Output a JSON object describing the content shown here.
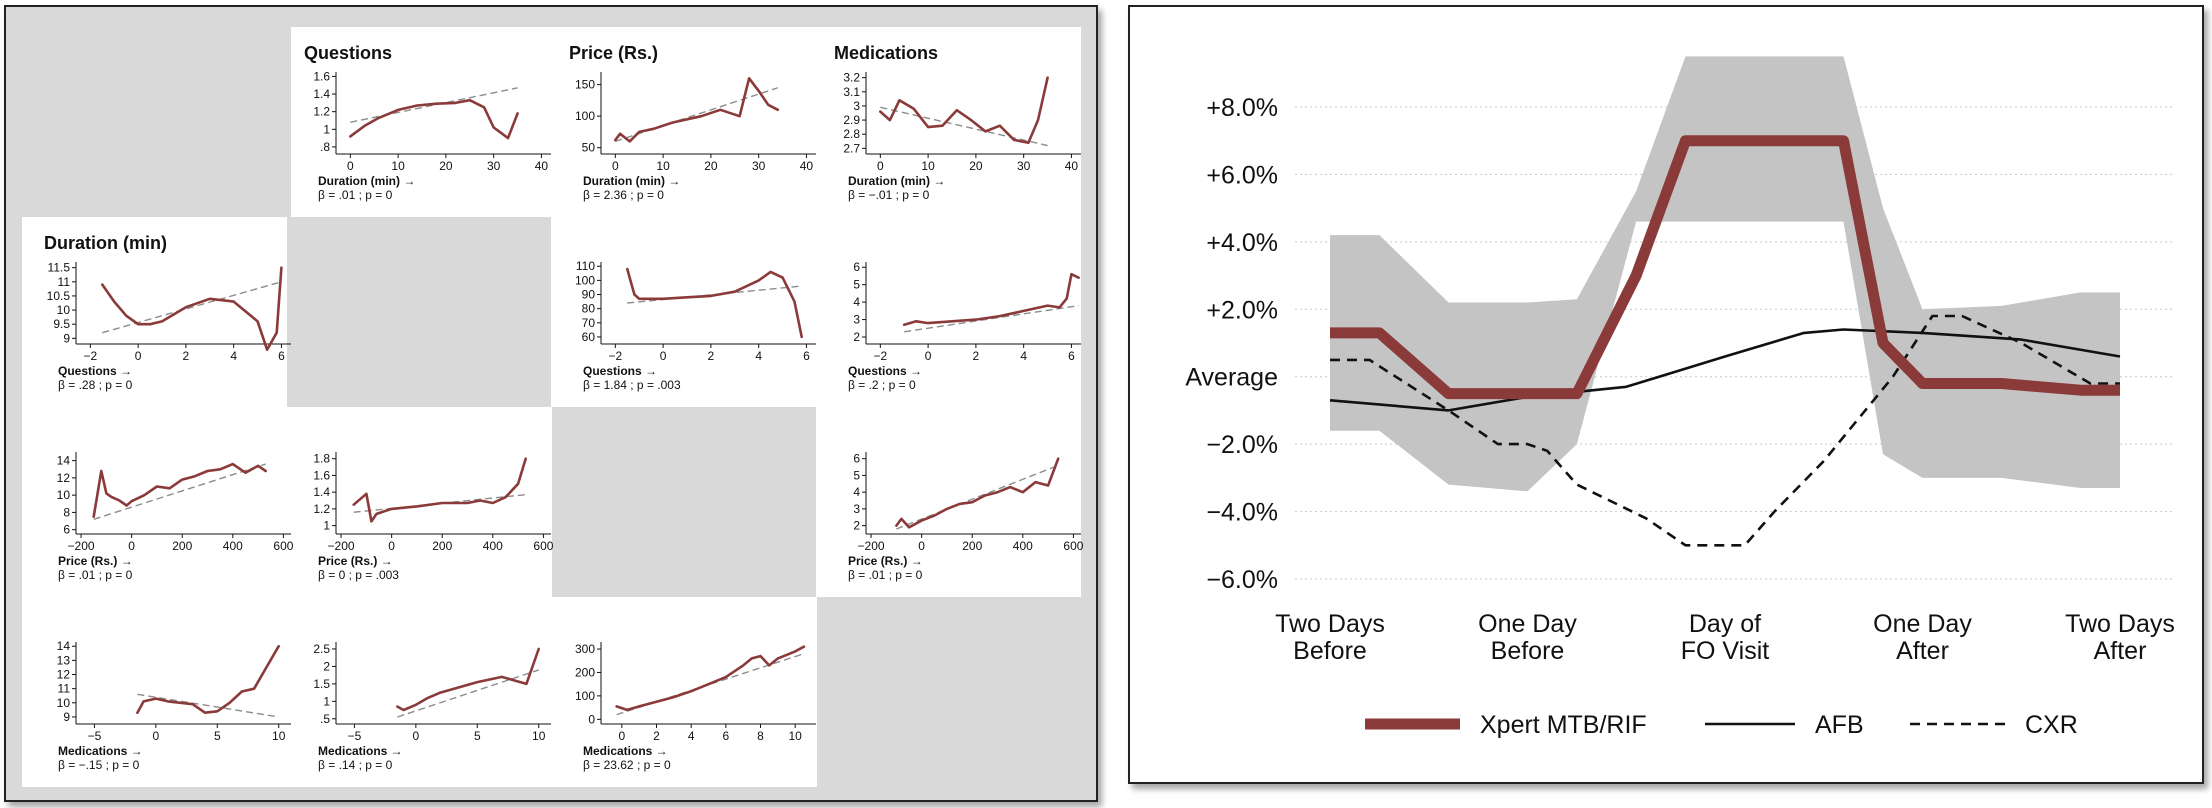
{
  "colors": {
    "series_red": "#8b3a3a",
    "fit_dash": "#8c8c8c",
    "ci_band": "#c4c4c4",
    "panel_gray": "#d9d9d9"
  },
  "chart_data": [
    {
      "type": "line",
      "layout": "scatterplot-matrix",
      "row_titles": [
        "Duration (min)",
        "Questions",
        "Price (Rs.)",
        "Medications"
      ],
      "col_titles": [
        "Questions",
        "Price (Rs.)",
        "Medications"
      ],
      "panels": [
        {
          "id": "q-dur",
          "xlabel": "Duration (min) →",
          "stat": "β = .01 ; p = 0",
          "xticks": [
            "0",
            "10",
            "20",
            "30",
            "40"
          ],
          "yticks": [
            "1.6",
            "1.4",
            "1.2",
            "1",
            ".8"
          ],
          "x": [
            0,
            3,
            6,
            10,
            14,
            18,
            22,
            25,
            28,
            30,
            33,
            35
          ],
          "y": [
            0.92,
            1.04,
            1.13,
            1.22,
            1.27,
            1.29,
            1.3,
            1.33,
            1.25,
            1.02,
            0.9,
            1.18
          ],
          "fit": [
            1.08,
            1.47
          ]
        },
        {
          "id": "p-dur",
          "xlabel": "Duration (min) →",
          "stat": "β = 2.36 ; p = 0",
          "xticks": [
            "0",
            "10",
            "20",
            "30",
            "40"
          ],
          "yticks": [
            "150",
            "100",
            "50"
          ],
          "x": [
            0,
            1,
            3,
            5,
            8,
            12,
            18,
            22,
            26,
            28,
            30,
            32,
            34
          ],
          "y": [
            62,
            72,
            60,
            75,
            80,
            90,
            100,
            110,
            100,
            160,
            140,
            118,
            110
          ],
          "fit": [
            60,
            145
          ]
        },
        {
          "id": "m-dur",
          "xlabel": "Duration (min) →",
          "stat": "β = −.01 ; p = 0",
          "xticks": [
            "0",
            "10",
            "20",
            "30",
            "40"
          ],
          "yticks": [
            "3.2",
            "3.1",
            "3",
            "2.9",
            "2.8",
            "2.7"
          ],
          "x": [
            0,
            2,
            4,
            7,
            10,
            13,
            16,
            19,
            22,
            25,
            28,
            31,
            33,
            35
          ],
          "y": [
            2.96,
            2.9,
            3.04,
            2.98,
            2.85,
            2.86,
            2.97,
            2.9,
            2.82,
            2.86,
            2.76,
            2.74,
            2.9,
            3.2
          ],
          "fit": [
            2.99,
            2.72
          ]
        },
        {
          "id": "d-q",
          "xlabel": "Questions →",
          "stat": "β = .28 ; p = 0",
          "xticks": [
            "−2",
            "0",
            "2",
            "4",
            "6"
          ],
          "yticks": [
            "11.5",
            "11",
            "10.5",
            "10",
            "9.5",
            "9"
          ],
          "x": [
            -1.5,
            -1,
            -0.5,
            0,
            0.5,
            1,
            2,
            3,
            4,
            5,
            5.4,
            5.8,
            6
          ],
          "y": [
            10.9,
            10.3,
            9.8,
            9.5,
            9.5,
            9.6,
            10.1,
            10.4,
            10.3,
            9.6,
            8.6,
            9.2,
            11.5
          ],
          "fit": [
            9.2,
            11.0
          ]
        },
        {
          "id": "p-q",
          "xlabel": "Questions →",
          "stat": "β = 1.84 ; p = .003",
          "xticks": [
            "−2",
            "0",
            "2",
            "4",
            "6"
          ],
          "yticks": [
            "110",
            "100",
            "90",
            "80",
            "70",
            "60"
          ],
          "x": [
            -1.5,
            -1.2,
            -1,
            0,
            1,
            2,
            3,
            4,
            4.5,
            5,
            5.5,
            5.8
          ],
          "y": [
            108,
            90,
            87,
            87,
            88,
            89,
            92,
            100,
            106,
            102,
            85,
            60
          ],
          "fit": [
            84,
            96
          ]
        },
        {
          "id": "m-q",
          "xlabel": "Questions →",
          "stat": "β = .2 ; p = 0",
          "xticks": [
            "−2",
            "0",
            "2",
            "4",
            "6"
          ],
          "yticks": [
            "6",
            "5",
            "4",
            "3",
            "2"
          ],
          "x": [
            -1,
            -0.5,
            0,
            1,
            2,
            3,
            4,
            5,
            5.5,
            5.8,
            6,
            6.3
          ],
          "y": [
            2.7,
            2.9,
            2.8,
            2.9,
            3.0,
            3.2,
            3.5,
            3.8,
            3.7,
            4.2,
            5.6,
            5.4
          ],
          "fit": [
            2.3,
            3.8
          ]
        },
        {
          "id": "d-p",
          "xlabel": "Price (Rs.) →",
          "stat": "β = .01 ; p = 0",
          "xticks": [
            "−200",
            "0",
            "200",
            "400",
            "600"
          ],
          "yticks": [
            "14",
            "12",
            "10",
            "8",
            "6"
          ],
          "x": [
            -150,
            -120,
            -100,
            -80,
            -50,
            -20,
            0,
            50,
            100,
            150,
            200,
            250,
            300,
            350,
            400,
            450,
            500,
            530
          ],
          "y": [
            7.5,
            12.8,
            10.2,
            9.8,
            9.4,
            8.8,
            9.3,
            10,
            11,
            10.8,
            11.8,
            12.2,
            12.8,
            13,
            13.6,
            12.6,
            13.4,
            12.8
          ],
          "fit": [
            7.2,
            13.6
          ]
        },
        {
          "id": "q-p",
          "xlabel": "Price (Rs.) →",
          "stat": "β = 0 ; p = .003",
          "xticks": [
            "−200",
            "0",
            "200",
            "400",
            "600"
          ],
          "yticks": [
            "1.8",
            "1.6",
            "1.4",
            "1.2",
            "1"
          ],
          "x": [
            -150,
            -100,
            -80,
            -60,
            0,
            100,
            200,
            300,
            350,
            400,
            450,
            500,
            530
          ],
          "y": [
            1.25,
            1.38,
            1.05,
            1.14,
            1.2,
            1.23,
            1.27,
            1.27,
            1.3,
            1.27,
            1.34,
            1.5,
            1.8
          ],
          "fit": [
            1.16,
            1.37
          ]
        },
        {
          "id": "m-p",
          "xlabel": "Price (Rs.) →",
          "stat": "β = .01 ; p = 0",
          "xticks": [
            "−200",
            "0",
            "200",
            "400",
            "600"
          ],
          "yticks": [
            "6",
            "5",
            "4",
            "3",
            "2"
          ],
          "x": [
            -100,
            -80,
            -50,
            0,
            50,
            100,
            150,
            200,
            250,
            300,
            350,
            400,
            450,
            500,
            540
          ],
          "y": [
            2.0,
            2.4,
            1.9,
            2.3,
            2.6,
            3.0,
            3.3,
            3.4,
            3.8,
            4.0,
            4.3,
            4.0,
            4.6,
            4.4,
            6.0
          ],
          "fit": [
            1.8,
            5.6
          ]
        },
        {
          "id": "d-m",
          "xlabel": "Medications →",
          "stat": "β = −.15 ; p = 0",
          "xticks": [
            "−5",
            "0",
            "5",
            "10"
          ],
          "yticks": [
            "14",
            "13",
            "12",
            "11",
            "10",
            "9"
          ],
          "x": [
            -1.5,
            -1,
            0,
            1,
            2,
            3,
            4,
            5,
            6,
            7,
            8,
            9,
            10
          ],
          "y": [
            9.3,
            10.1,
            10.3,
            10.1,
            10.0,
            9.9,
            9.3,
            9.4,
            10,
            10.8,
            11,
            12.5,
            14
          ],
          "fit": [
            10.6,
            9.0
          ]
        },
        {
          "id": "q-m",
          "xlabel": "Medications →",
          "stat": "β = .14 ; p = 0",
          "xticks": [
            "−5",
            "0",
            "5",
            "10"
          ],
          "yticks": [
            "2.5",
            "2",
            "1.5",
            "1",
            ".5"
          ],
          "x": [
            -1.5,
            -1,
            0,
            1,
            2,
            3,
            5,
            7,
            8,
            9,
            10
          ],
          "y": [
            0.85,
            0.75,
            0.9,
            1.1,
            1.25,
            1.35,
            1.55,
            1.7,
            1.6,
            1.5,
            2.5
          ],
          "fit": [
            0.55,
            1.9
          ]
        },
        {
          "id": "p-m",
          "xlabel": "Medications →",
          "stat": "β = 23.62 ; p = 0",
          "xticks": [
            "0",
            "2",
            "4",
            "6",
            "8",
            "10"
          ],
          "yticks": [
            "300",
            "200",
            "100",
            "0"
          ],
          "x": [
            -0.3,
            0.3,
            1,
            2,
            3,
            4,
            5,
            6,
            7,
            7.5,
            8,
            8.5,
            9,
            10,
            10.5
          ],
          "y": [
            55,
            40,
            55,
            75,
            95,
            120,
            150,
            180,
            230,
            260,
            270,
            230,
            260,
            290,
            310
          ],
          "fit": [
            20,
            280
          ]
        }
      ]
    },
    {
      "type": "line",
      "title": "",
      "categories": [
        "Two Days\nBefore",
        "One Day\nBefore",
        "Day of\nFO Visit",
        "One Day\nAfter",
        "Two Days\nAfter"
      ],
      "y_tick_labels": [
        "+8.0%",
        "+6.0%",
        "+4.0%",
        "+2.0%",
        "Average",
        "−2.0%",
        "−4.0%",
        "−6.0%"
      ],
      "ylim": [
        -6.0,
        8.0
      ],
      "grid": true,
      "legend_position": "bottom",
      "series": [
        {
          "name": "Xpert MTB/RIF",
          "style": "thick-red",
          "x": [
            0,
            0.25,
            0.6,
            1.0,
            1.25,
            1.55,
            1.8,
            2.0,
            2.3,
            2.6,
            2.8,
            3.0,
            3.4,
            3.8,
            4.0
          ],
          "y": [
            1.3,
            1.3,
            -0.5,
            -0.5,
            -0.5,
            3.0,
            7.0,
            7.0,
            7.0,
            7.0,
            1.0,
            -0.2,
            -0.2,
            -0.4,
            -0.4
          ]
        },
        {
          "name": "AFB",
          "style": "solid-black",
          "x": [
            0,
            0.6,
            1.0,
            1.5,
            2.0,
            2.4,
            2.6,
            3.0,
            3.5,
            4.0
          ],
          "y": [
            -0.7,
            -1.0,
            -0.6,
            -0.3,
            0.6,
            1.3,
            1.4,
            1.3,
            1.1,
            0.6
          ]
        },
        {
          "name": "CXR",
          "style": "dashed-black",
          "x": [
            0,
            0.2,
            0.6,
            0.85,
            1.0,
            1.1,
            1.25,
            1.6,
            1.8,
            2.1,
            2.25,
            2.5,
            2.85,
            3.05,
            3.2,
            3.5,
            3.85,
            4.0
          ],
          "y": [
            0.5,
            0.5,
            -1.0,
            -2.0,
            -2.0,
            -2.2,
            -3.2,
            -4.2,
            -5.0,
            -5.0,
            -4.0,
            -2.5,
            0.0,
            1.8,
            1.8,
            1.0,
            -0.2,
            -0.2
          ]
        }
      ],
      "confidence_band": {
        "x": [
          0,
          0.25,
          0.6,
          1.0,
          1.25,
          1.55,
          1.8,
          2.0,
          2.3,
          2.6,
          2.8,
          3.0,
          3.4,
          3.8,
          4.0
        ],
        "upper": [
          4.2,
          4.2,
          2.2,
          2.2,
          2.3,
          5.5,
          9.5,
          9.5,
          9.5,
          9.5,
          5.0,
          2.0,
          2.1,
          2.5,
          2.5
        ],
        "lower": [
          -1.6,
          -1.6,
          -3.2,
          -3.4,
          -2.0,
          4.6,
          4.6,
          4.6,
          4.6,
          4.6,
          -2.3,
          -3.0,
          -3.0,
          -3.3,
          -3.3
        ]
      }
    }
  ]
}
